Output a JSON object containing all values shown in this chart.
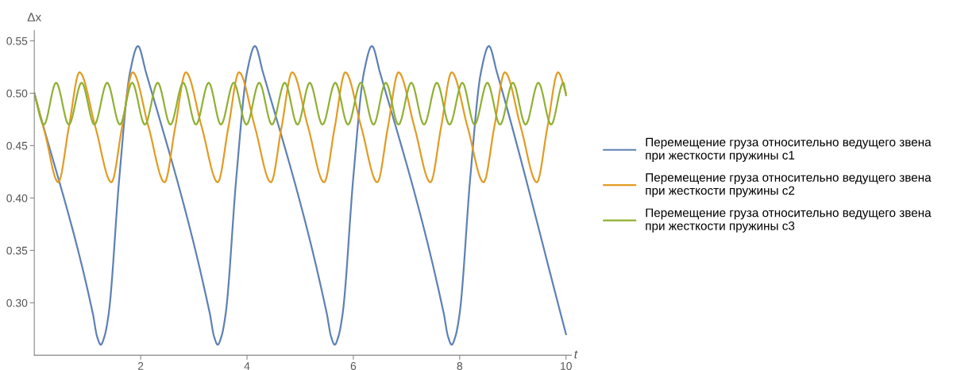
{
  "chart_data": {
    "type": "line",
    "xlabel": "t",
    "ylabel": "Δx",
    "xlim": [
      0,
      10.1
    ],
    "ylim": [
      0.25,
      0.56
    ],
    "xticks": [
      2,
      4,
      6,
      8,
      10
    ],
    "yticks": [
      {
        "value": 0.3,
        "label": "0.30"
      },
      {
        "value": 0.35,
        "label": "0.35"
      },
      {
        "value": 0.4,
        "label": "0.40"
      },
      {
        "value": 0.45,
        "label": "0.45"
      },
      {
        "value": 0.5,
        "label": "0.50"
      },
      {
        "value": 0.55,
        "label": "0.55"
      }
    ],
    "grid": false,
    "legend": "right",
    "line_style": "solid",
    "series": [
      {
        "name": "Перемещение груза относительно ведущего звена\nпри жесткости пружины c1",
        "color": "#5e81b5",
        "x": [
          0,
          1.1,
          1.18,
          1.25,
          1.32,
          1.4,
          1.6,
          1.8,
          1.95,
          2.1,
          3.3,
          3.38,
          3.45,
          3.52,
          3.6,
          3.8,
          4.0,
          4.15,
          4.3,
          5.5,
          5.58,
          5.65,
          5.72,
          5.8,
          6.0,
          6.2,
          6.35,
          6.5,
          7.7,
          7.78,
          7.85,
          7.92,
          8.0,
          8.2,
          8.4,
          8.55,
          8.7,
          10.0
        ],
        "values": [
          0.5,
          0.29,
          0.268,
          0.26,
          0.268,
          0.29,
          0.42,
          0.52,
          0.545,
          0.52,
          0.29,
          0.268,
          0.26,
          0.268,
          0.29,
          0.42,
          0.52,
          0.545,
          0.52,
          0.29,
          0.268,
          0.26,
          0.268,
          0.29,
          0.42,
          0.52,
          0.545,
          0.52,
          0.29,
          0.268,
          0.26,
          0.268,
          0.29,
          0.42,
          0.52,
          0.545,
          0.52,
          0.27
        ]
      },
      {
        "name": "Перемещение груза относительно ведущего звена\nпри жесткости пружины c2",
        "color": "#e19c24",
        "x": [
          0,
          0.2,
          0.45,
          0.65,
          0.85,
          1.15,
          1.45,
          1.65,
          1.85,
          2.15,
          2.45,
          2.65,
          2.85,
          3.15,
          3.45,
          3.65,
          3.85,
          4.15,
          4.45,
          4.65,
          4.85,
          5.15,
          5.45,
          5.65,
          5.85,
          6.15,
          6.45,
          6.65,
          6.85,
          7.15,
          7.45,
          7.65,
          7.85,
          8.15,
          8.45,
          8.65,
          8.85,
          9.15,
          9.45,
          9.65,
          9.85,
          10.0
        ],
        "values": [
          0.5,
          0.462,
          0.415,
          0.4675,
          0.52,
          0.4675,
          0.415,
          0.4675,
          0.52,
          0.4675,
          0.415,
          0.4675,
          0.52,
          0.4675,
          0.415,
          0.4675,
          0.52,
          0.4675,
          0.415,
          0.4675,
          0.52,
          0.4675,
          0.415,
          0.4675,
          0.52,
          0.4675,
          0.415,
          0.4675,
          0.52,
          0.4675,
          0.415,
          0.4675,
          0.52,
          0.4675,
          0.415,
          0.4675,
          0.52,
          0.4675,
          0.415,
          0.4675,
          0.52,
          0.5
        ]
      },
      {
        "name": "Перемещение груза относительно ведущего звена\nпри жесткости пружины c3",
        "color": "#8fb032",
        "x": [
          0,
          0.18,
          0.41,
          0.65,
          0.89,
          1.13,
          1.37,
          1.61,
          1.84,
          2.08,
          2.32,
          2.56,
          2.8,
          3.04,
          3.28,
          3.51,
          3.75,
          3.99,
          4.23,
          4.47,
          4.71,
          4.95,
          5.18,
          5.42,
          5.66,
          5.9,
          6.14,
          6.38,
          6.61,
          6.85,
          7.09,
          7.33,
          7.57,
          7.81,
          8.05,
          8.28,
          8.52,
          8.76,
          9.0,
          9.24,
          9.48,
          9.72,
          9.95,
          10.0
        ],
        "values": [
          0.5,
          0.47,
          0.51,
          0.47,
          0.51,
          0.47,
          0.51,
          0.47,
          0.51,
          0.47,
          0.51,
          0.47,
          0.51,
          0.47,
          0.51,
          0.47,
          0.51,
          0.47,
          0.51,
          0.47,
          0.51,
          0.47,
          0.51,
          0.47,
          0.51,
          0.47,
          0.51,
          0.47,
          0.51,
          0.47,
          0.51,
          0.47,
          0.51,
          0.47,
          0.51,
          0.47,
          0.51,
          0.47,
          0.51,
          0.47,
          0.51,
          0.47,
          0.51,
          0.498
        ]
      }
    ]
  }
}
